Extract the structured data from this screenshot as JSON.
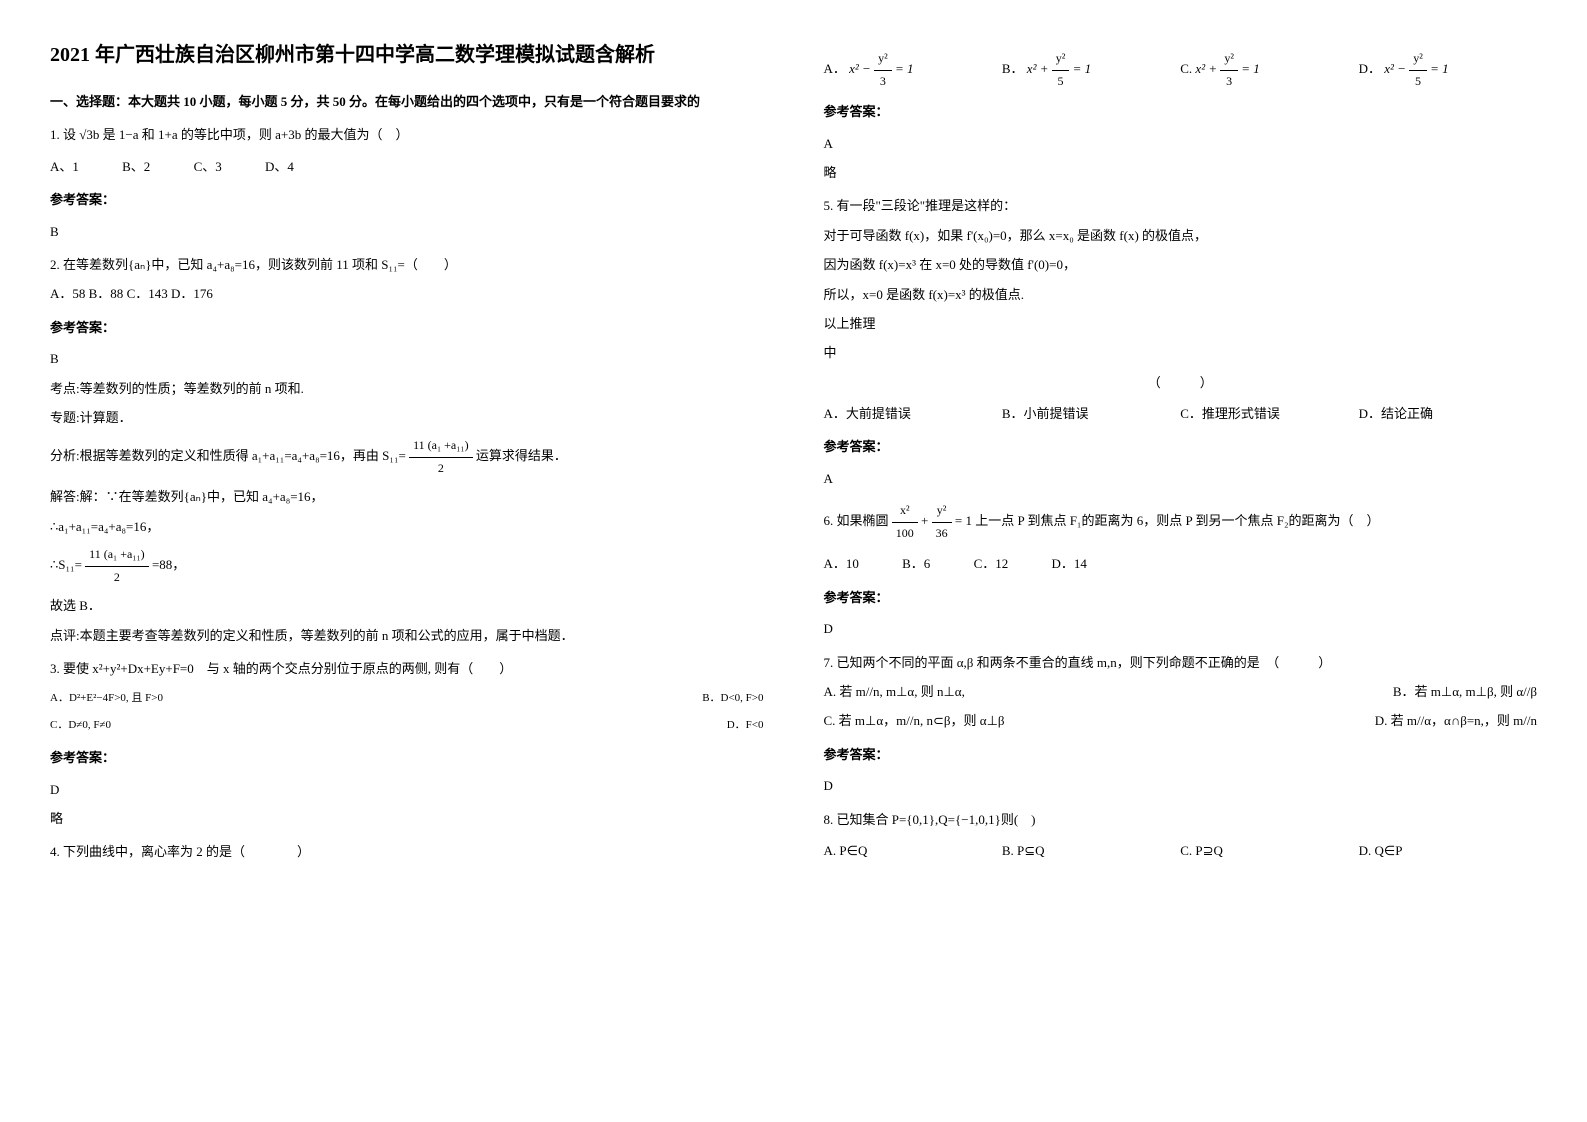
{
  "title": "2021 年广西壮族自治区柳州市第十四中学高二数学理模拟试题含解析",
  "section1_header": "一、选择题：本大题共 10 小题，每小题 5 分，共 50 分。在每小题给出的四个选项中，只有是一个符合题目要求的",
  "q1": {
    "text": "1. 设 √3b 是 1−a 和 1+a 的等比中项，则 a+3b 的最大值为（　）",
    "opt_a": "A、1",
    "opt_b": "B、2",
    "opt_c": "C、3",
    "opt_d": "D、4"
  },
  "answer_label": "参考答案：",
  "q1_answer": "B",
  "q2": {
    "text": "2. 在等差数列{aₙ}中，已知 a₄+a₈=16，则该数列前 11 项和 S₁₁=（　　）",
    "opt_a": "A．58",
    "opt_b": "B．88",
    "opt_c": "C．143",
    "opt_d": "D．176"
  },
  "q2_answer": "B",
  "q2_explain1": "考点:等差数列的性质；等差数列的前 n 项和.",
  "q2_explain2": "专题:计算题．",
  "q2_explain3": "分析:根据等差数列的定义和性质得 a₁+a₁₁=a₄+a₈=16，再由 S₁₁=",
  "q2_explain3b": "运算求得结果．",
  "q2_explain4": "解答:解：∵在等差数列{aₙ}中，已知 a₄+a₈=16，",
  "q2_explain5": "∴a₁+a₁₁=a₄+a₈=16，",
  "q2_explain6a": "∴S₁₁=",
  "q2_explain6b": "=88，",
  "q2_explain7": "故选 B．",
  "q2_explain8": "点评:本题主要考查等差数列的定义和性质，等差数列的前 n 项和公式的应用，属于中档题．",
  "q3": {
    "text": "3. 要使 x²+y²+Dx+Ey+F=0　与 x 轴的两个交点分别位于原点的两侧, 则有（　　）",
    "opt_a": "A．D²+E²−4F>0, 且 F>0",
    "opt_b": "B．D<0, F>0",
    "opt_c": "C．D≠0, F≠0",
    "opt_d": "D．F<0"
  },
  "q3_answer": "D",
  "q3_skip": "略",
  "q4": {
    "text": "4. 下列曲线中，离心率为 2 的是（　　　　）",
    "opt_a_prefix": "A．",
    "opt_b_prefix": "B．",
    "opt_c_prefix": "C.",
    "opt_d_prefix": "D．"
  },
  "q4_answer": "A",
  "q4_skip": "略",
  "q5": {
    "text": "5. 有一段\"三段论\"推理是这样的：",
    "line1": "对于可导函数 f(x)，如果 f'(x₀)=0，那么 x=x₀ 是函数 f(x) 的极值点，",
    "line2": "因为函数 f(x)=x³ 在 x=0 处的导数值 f'(0)=0，",
    "line3": "所以，x=0 是函数 f(x)=x³ 的极值点.",
    "line4": "以上推理",
    "line5": "中",
    "paren": "（　　　）",
    "opt_a": "A．大前提错误",
    "opt_b": "B．小前提错误",
    "opt_c": "C．推理形式错误",
    "opt_d": "D．结论正确"
  },
  "q5_answer": "A",
  "q6": {
    "text_prefix": "6. 如果椭圆",
    "text_suffix": "上一点 P 到焦点 F₁的距离为 6，则点 P 到另一个焦点 F₂的距离为（　）",
    "opt_a": "A．10",
    "opt_b": "B．6",
    "opt_c": "C．12",
    "opt_d": "D．14"
  },
  "q6_answer": "D",
  "q7": {
    "text": "7. 已知两个不同的平面 α,β 和两条不重合的直线 m,n，则下列命题不正确的是　（　　　）",
    "opt_a": "A. 若 m//n, m⊥α, 则 n⊥α,",
    "opt_b": "B．若 m⊥α, m⊥β, 则 α//β",
    "opt_c": "C. 若 m⊥α，m//n, n⊂β，则 α⊥β",
    "opt_d": "D. 若 m//α，α∩β=n,，则 m//n"
  },
  "q7_answer": "D",
  "q8": {
    "text": "8. 已知集合 P={0,1},Q={−1,0,1}则(　)",
    "opt_a": "A. P∈Q",
    "opt_b": "B. P⊆Q",
    "opt_c": "C. P⊇Q",
    "opt_d": "D. Q∈P"
  },
  "frac_11a": {
    "num": "11 (a₁ +a₁₁)",
    "den": "2"
  },
  "ellipse_frac": {
    "num1": "x²",
    "den1": "100",
    "num2": "y²",
    "den2": "36"
  },
  "hyp_opts": {
    "a_num1": "y²",
    "a_den1": "3",
    "b_num1": "y²",
    "b_den1": "5",
    "c_num1": "y²",
    "c_den1": "3",
    "d_num1": "y²",
    "d_den1": "5"
  }
}
